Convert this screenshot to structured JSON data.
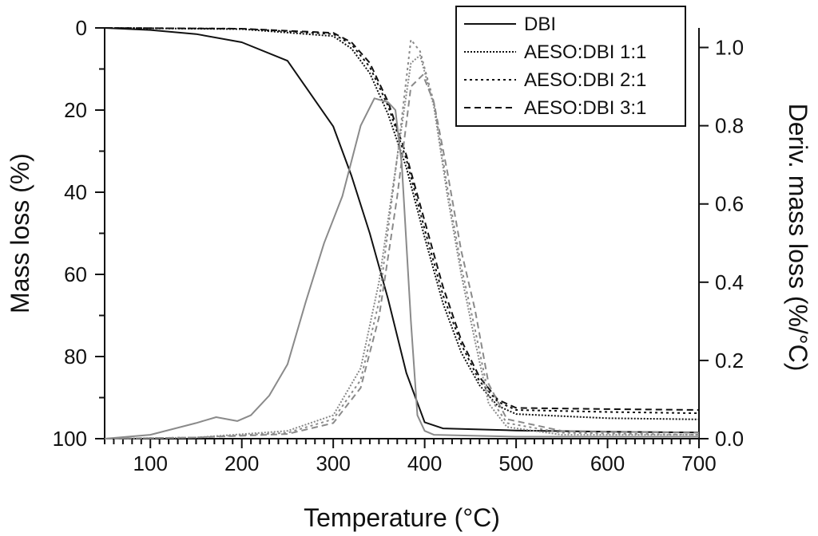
{
  "chart_data": {
    "type": "line",
    "xlabel": "Temperature (°C)",
    "ylabel_left": "Mass loss (%)",
    "ylabel_right": "Deriv. mass loss (%/°C)",
    "xlim": [
      50,
      700
    ],
    "ylim_left": [
      100,
      0
    ],
    "ylim_right": [
      0,
      1.05
    ],
    "x_ticks": [
      100,
      200,
      300,
      400,
      500,
      600,
      700
    ],
    "y_left_ticks": [
      0,
      20,
      40,
      60,
      80,
      100
    ],
    "y_right_ticks": [
      0.0,
      0.2,
      0.4,
      0.6,
      0.8,
      1.0
    ],
    "y_right_tick_labels": [
      "0.0",
      "0.2",
      "0.4",
      "0.6",
      "0.8",
      "1.0"
    ],
    "legend": {
      "placement": "top-right",
      "entries": [
        {
          "label": "DBI",
          "dash": "solid"
        },
        {
          "label": "AESO:DBI 1:1",
          "dash": "dotted"
        },
        {
          "label": "AESO:DBI 2:1",
          "dash": "dotted-coarse"
        },
        {
          "label": "AESO:DBI 3:1",
          "dash": "dashed"
        }
      ]
    },
    "series": [
      {
        "name": "DBI",
        "axis": "left",
        "color": "#111111",
        "dash": "solid",
        "x": [
          50,
          100,
          150,
          200,
          250,
          300,
          320,
          340,
          360,
          380,
          400,
          420,
          500,
          600,
          700
        ],
        "y": [
          0,
          0.5,
          1.5,
          3.5,
          8,
          24,
          36,
          50,
          66,
          84,
          96,
          97.5,
          98,
          98.3,
          98.5
        ]
      },
      {
        "name": "AESO:DBI 1:1",
        "axis": "left",
        "color": "#111111",
        "dash": "dotted",
        "x": [
          50,
          200,
          300,
          320,
          340,
          360,
          380,
          400,
          420,
          440,
          460,
          480,
          500,
          600,
          700
        ],
        "y": [
          0,
          0.3,
          2,
          5,
          11,
          21,
          34,
          51,
          67,
          79,
          87,
          92,
          94,
          95,
          95.3
        ]
      },
      {
        "name": "AESO:DBI 2:1",
        "axis": "left",
        "color": "#111111",
        "dash": "dotted-coarse",
        "x": [
          50,
          200,
          300,
          320,
          340,
          360,
          380,
          400,
          420,
          440,
          460,
          480,
          500,
          600,
          700
        ],
        "y": [
          0,
          0.2,
          1.5,
          4,
          9.5,
          19,
          32,
          49,
          65,
          77,
          86,
          91,
          93,
          93.5,
          93.8
        ]
      },
      {
        "name": "AESO:DBI 3:1",
        "axis": "left",
        "color": "#111111",
        "dash": "dashed",
        "x": [
          50,
          200,
          300,
          320,
          340,
          360,
          380,
          400,
          420,
          440,
          460,
          480,
          500,
          600,
          700
        ],
        "y": [
          0,
          0.2,
          1.2,
          3.5,
          8.5,
          18,
          31,
          47,
          63,
          76,
          85,
          90.5,
          92.5,
          92.8,
          93
        ]
      },
      {
        "name": "DBI",
        "axis": "right",
        "color": "#8a8a8a",
        "dash": "solid",
        "x": [
          50,
          100,
          150,
          172,
          195,
          210,
          230,
          250,
          270,
          290,
          310,
          330,
          345,
          360,
          368,
          375,
          385,
          392,
          400,
          410,
          500,
          700
        ],
        "y": [
          0,
          0.01,
          0.04,
          0.055,
          0.045,
          0.06,
          0.11,
          0.19,
          0.35,
          0.5,
          0.62,
          0.8,
          0.87,
          0.86,
          0.84,
          0.7,
          0.3,
          0.06,
          0.02,
          0.01,
          0.005,
          0.005
        ]
      },
      {
        "name": "AESO:DBI 1:1",
        "axis": "right",
        "color": "#8a8a8a",
        "dash": "dotted",
        "x": [
          50,
          150,
          250,
          300,
          330,
          350,
          370,
          385,
          395,
          410,
          425,
          440,
          455,
          470,
          490,
          550,
          700
        ],
        "y": [
          0,
          0.003,
          0.02,
          0.06,
          0.18,
          0.4,
          0.72,
          0.96,
          0.98,
          0.85,
          0.62,
          0.42,
          0.25,
          0.09,
          0.03,
          0.01,
          0.01
        ]
      },
      {
        "name": "AESO:DBI 2:1",
        "axis": "right",
        "color": "#8a8a8a",
        "dash": "dotted-coarse",
        "x": [
          50,
          150,
          250,
          300,
          330,
          350,
          370,
          385,
          395,
          410,
          425,
          440,
          455,
          470,
          490,
          550,
          700
        ],
        "y": [
          0,
          0.003,
          0.015,
          0.05,
          0.15,
          0.35,
          0.72,
          1.02,
          0.99,
          0.86,
          0.64,
          0.44,
          0.28,
          0.11,
          0.04,
          0.015,
          0.01
        ]
      },
      {
        "name": "AESO:DBI 3:1",
        "axis": "right",
        "color": "#8a8a8a",
        "dash": "dashed",
        "x": [
          50,
          150,
          250,
          300,
          330,
          350,
          370,
          385,
          398,
          410,
          425,
          440,
          455,
          470,
          490,
          550,
          700
        ],
        "y": [
          0,
          0.003,
          0.012,
          0.04,
          0.13,
          0.31,
          0.62,
          0.9,
          0.93,
          0.86,
          0.68,
          0.48,
          0.33,
          0.14,
          0.05,
          0.02,
          0.015
        ]
      }
    ]
  }
}
